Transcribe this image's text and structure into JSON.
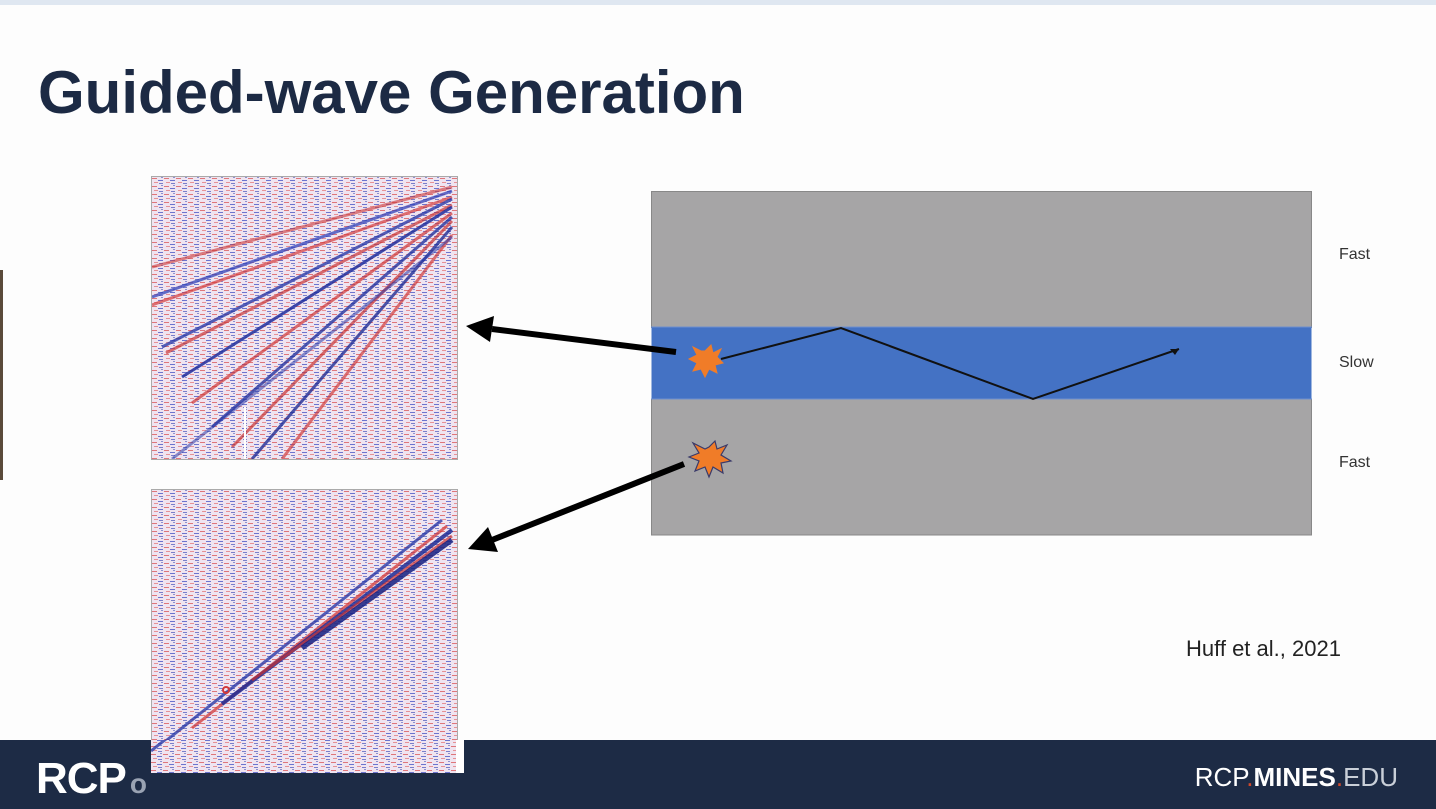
{
  "slide": {
    "title": "Guided-wave Generation",
    "citation": "Huff et al., 2021"
  },
  "diagram": {
    "layers": [
      {
        "label": "Fast",
        "color": "#a6a5a6"
      },
      {
        "label": "Slow",
        "color": "#4472c4"
      },
      {
        "label": "Fast",
        "color": "#a6a5a6"
      }
    ],
    "source_color": "#f07c28"
  },
  "footer": {
    "logo": "RCP",
    "logo_mark": "o",
    "url_part1": "RCP",
    "url_dot1": ".",
    "url_part2": "MINES",
    "url_dot2": ".",
    "url_part3": "EDU"
  },
  "colors": {
    "title": "#1c2a44",
    "footer_bg": "#1d2b45",
    "seismic_red": "#d93a3a",
    "seismic_blue": "#2b3fb8"
  }
}
